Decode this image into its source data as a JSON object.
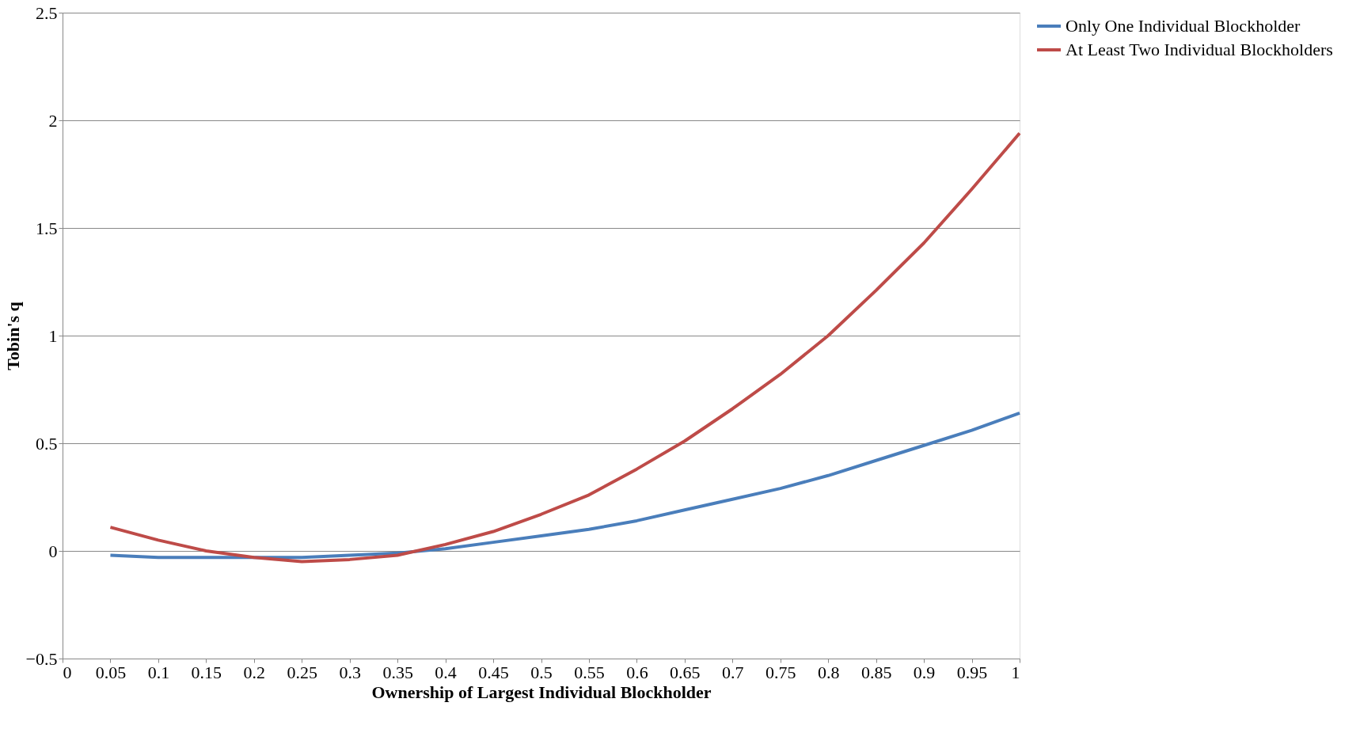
{
  "chart_data": {
    "type": "line",
    "xlabel": "Ownership of Largest Individual Blockholder",
    "ylabel": "Tobin's q",
    "x": [
      0.05,
      0.1,
      0.15,
      0.2,
      0.25,
      0.3,
      0.35,
      0.4,
      0.45,
      0.5,
      0.55,
      0.6,
      0.65,
      0.7,
      0.75,
      0.8,
      0.85,
      0.9,
      0.95,
      1
    ],
    "series": [
      {
        "name": "Only One Individual Blockholder",
        "color": "#4a7ebb",
        "values": [
          -0.02,
          -0.03,
          -0.03,
          -0.03,
          -0.03,
          -0.02,
          -0.01,
          0.01,
          0.04,
          0.07,
          0.1,
          0.14,
          0.19,
          0.24,
          0.29,
          0.35,
          0.42,
          0.49,
          0.56,
          0.64
        ]
      },
      {
        "name": "At Least Two Individual Blockholders",
        "color": "#be4b48",
        "values": [
          0.11,
          0.05,
          0.0,
          -0.03,
          -0.05,
          -0.04,
          -0.02,
          0.03,
          0.09,
          0.17,
          0.26,
          0.38,
          0.51,
          0.66,
          0.82,
          1.0,
          1.21,
          1.43,
          1.68,
          1.94
        ]
      }
    ],
    "xlim": [
      0,
      1
    ],
    "xticks": [
      0,
      0.05,
      0.1,
      0.15,
      0.2,
      0.25,
      0.3,
      0.35,
      0.4,
      0.45,
      0.5,
      0.55,
      0.6,
      0.65,
      0.7,
      0.75,
      0.8,
      0.85,
      0.9,
      0.95,
      1
    ],
    "ylim": [
      -0.5,
      2.5
    ],
    "yticks": [
      -0.5,
      0,
      0.5,
      1,
      1.5,
      2,
      2.5
    ],
    "grid": "y",
    "legend": "right",
    "marker": "none",
    "line_style": "solid"
  }
}
